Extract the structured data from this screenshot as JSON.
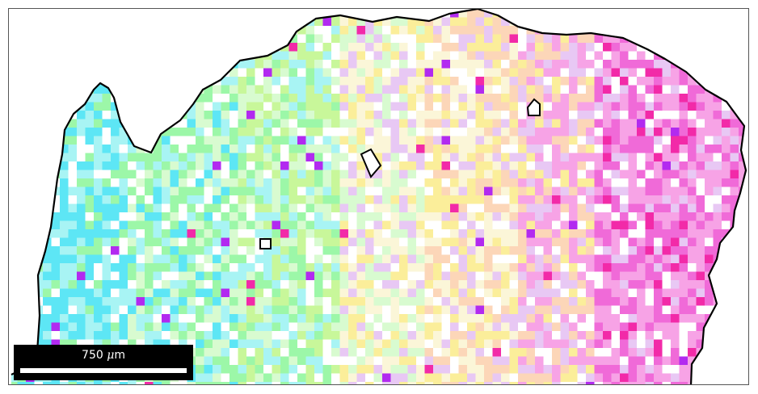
{
  "scalebar": {
    "value": "750",
    "unit_symbol": "μ",
    "unit_suffix": "m"
  },
  "map": {
    "pixel_palette": {
      "cyan": "#5de6f5",
      "light_cyan": "#a8f4f4",
      "green": "#9cf7a8",
      "lime": "#c8f79a",
      "pale_green": "#d8fbd0",
      "white": "#ffffff",
      "cream": "#fbf6d8",
      "yellow": "#fbee9a",
      "peach": "#fcd6b8",
      "pink": "#f7a3e6",
      "magenta": "#f06ad8",
      "hot_pink": "#f22aa8",
      "lavender": "#e8c8f4",
      "purple": "#b22af0"
    },
    "boundary_color": "#000000",
    "frame_color": "#555555"
  }
}
